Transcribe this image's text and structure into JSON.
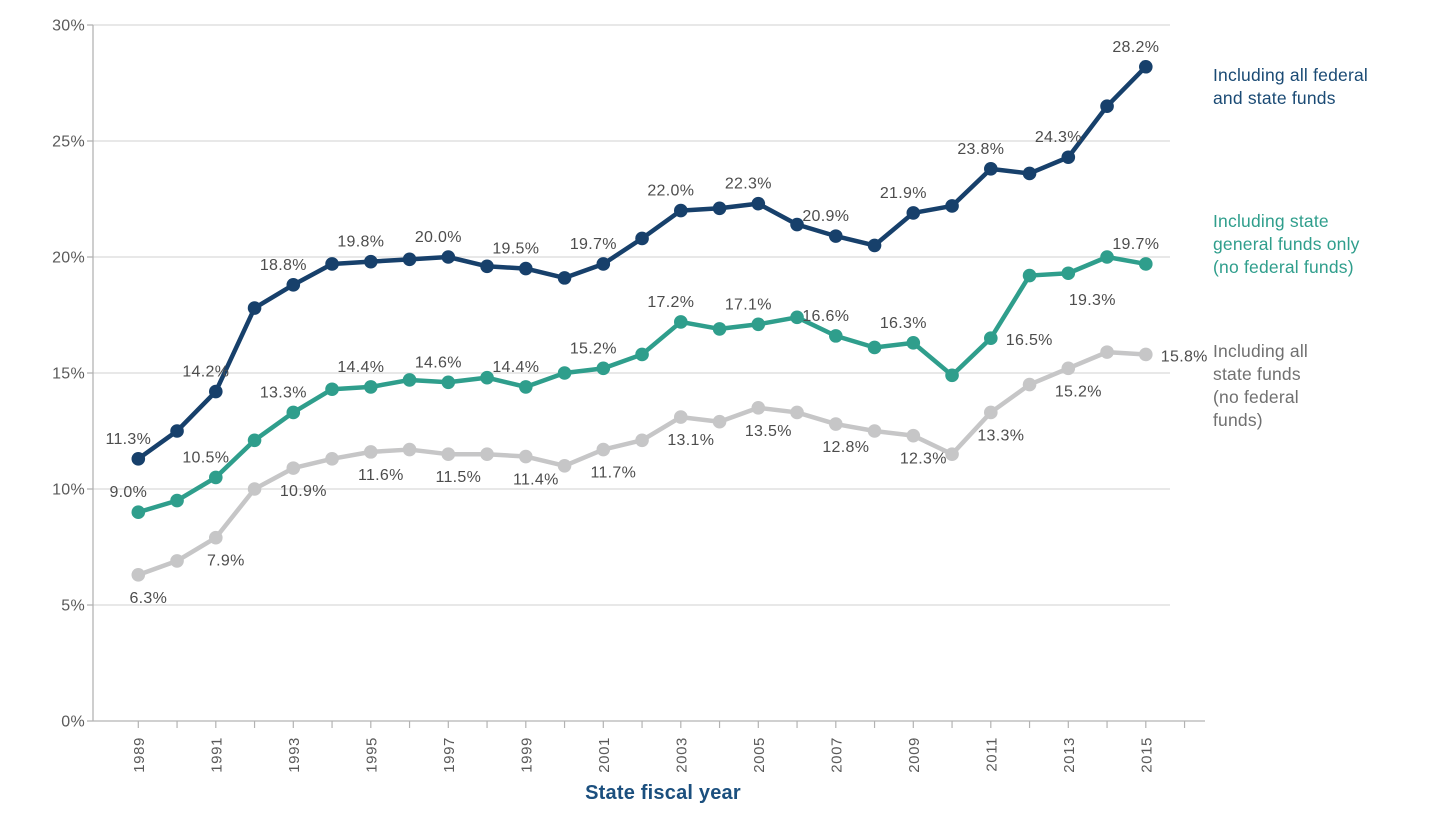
{
  "chart_data": {
    "type": "line",
    "title": "",
    "xlabel": "State fiscal year",
    "ylabel": "",
    "ylim": [
      0,
      30
    ],
    "grid": true,
    "legend_position": "right",
    "y_tick_labels": [
      "0%",
      "5%",
      "10%",
      "15%",
      "20%",
      "25%",
      "30%"
    ],
    "years": [
      1989,
      1990,
      1991,
      1992,
      1993,
      1994,
      1995,
      1996,
      1997,
      1998,
      1999,
      2000,
      2001,
      2002,
      2003,
      2004,
      2005,
      2006,
      2007,
      2008,
      2009,
      2010,
      2011,
      2012,
      2013,
      2014,
      2015
    ],
    "x_tick_labels": [
      "1989",
      "1991",
      "1993",
      "1995",
      "1997",
      "1999",
      "2001",
      "2003",
      "2005",
      "2007",
      "2009",
      "2011",
      "2013",
      "2015"
    ],
    "colors": {
      "grid": "#DBDBDB",
      "axis": "#B3B3B3",
      "tick_text": "#5A5A5A",
      "point_label_text": "#4D4D4D",
      "title_text": "#1B4F7E",
      "background": "#FFFFFF"
    },
    "series": [
      {
        "name": "Including all federal and state funds",
        "color": "#17406B",
        "legend_text_color": "#1A4A74",
        "legend_lines": [
          "Including all federal",
          "and state funds"
        ],
        "values": [
          11.3,
          12.5,
          14.2,
          17.8,
          18.8,
          19.7,
          19.8,
          19.9,
          20.0,
          19.6,
          19.5,
          19.1,
          19.7,
          20.8,
          22.0,
          22.1,
          22.3,
          21.4,
          20.9,
          20.5,
          21.9,
          22.2,
          23.8,
          23.6,
          24.3,
          26.5,
          28.2
        ],
        "point_labels": {
          "1989": "11.3%",
          "1991": "14.2%",
          "1993": "18.8%",
          "1995": "19.8%",
          "1997": "20.0%",
          "1999": "19.5%",
          "2001": "19.7%",
          "2003": "22.0%",
          "2005": "22.3%",
          "2007": "20.9%",
          "2009": "21.9%",
          "2011": "23.8%",
          "2013": "24.3%",
          "2015": "28.2%"
        }
      },
      {
        "name": "Including state general funds only (no federal funds)",
        "color": "#2F9E8C",
        "legend_text_color": "#2F9E8C",
        "legend_lines": [
          "Including state",
          "general funds only",
          "(no federal funds)"
        ],
        "values": [
          9.0,
          9.5,
          10.5,
          12.1,
          13.3,
          14.3,
          14.4,
          14.7,
          14.6,
          14.8,
          14.4,
          15.0,
          15.2,
          15.8,
          17.2,
          16.9,
          17.1,
          17.4,
          16.6,
          16.1,
          16.3,
          14.9,
          16.5,
          19.2,
          19.3,
          20.0,
          19.7
        ],
        "point_labels": {
          "1989": "9.0%",
          "1991": "10.5%",
          "1993": "13.3%",
          "1995": "14.4%",
          "1997": "14.6%",
          "1999": "14.4%",
          "2001": "15.2%",
          "2003": "17.2%",
          "2005": "17.1%",
          "2007": "16.6%",
          "2009": "16.3%",
          "2011": "16.5%",
          "2013": "19.3%",
          "2015": "19.7%"
        }
      },
      {
        "name": "Including all state funds (no federal funds)",
        "color": "#C6C6C7",
        "legend_text_color": "#707070",
        "legend_lines": [
          "Including all",
          "state funds",
          "(no federal",
          "funds)"
        ],
        "values": [
          6.3,
          6.9,
          7.9,
          10.0,
          10.9,
          11.3,
          11.6,
          11.7,
          11.5,
          11.5,
          11.4,
          11.0,
          11.7,
          12.1,
          13.1,
          12.9,
          13.5,
          13.3,
          12.8,
          12.5,
          12.3,
          11.5,
          13.3,
          14.5,
          15.2,
          15.9,
          15.8
        ],
        "point_labels": {
          "1989": "6.3%",
          "1991": "7.9%",
          "1993": "10.9%",
          "1995": "11.6%",
          "1997": "11.5%",
          "1999": "11.4%",
          "2001": "11.7%",
          "2003": "13.1%",
          "2005": "13.5%",
          "2007": "12.8%",
          "2009": "12.3%",
          "2011": "13.3%",
          "2013": "15.2%",
          "2015": "15.8%"
        }
      }
    ]
  }
}
